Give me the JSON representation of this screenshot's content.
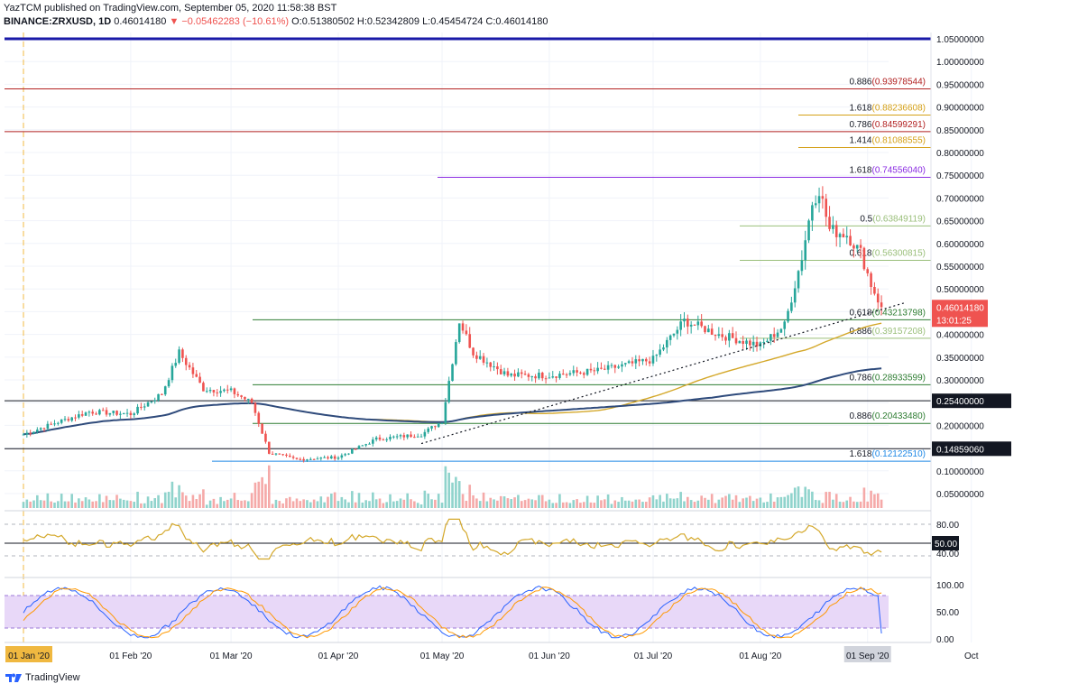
{
  "header": {
    "published_line": "YazTCM published on TradingView.com, September 05, 2020 11:58:38 BST",
    "symbol": "BINANCE:ZRXUSD, 1D",
    "last": "0.46014180",
    "change": "▼ −0.05462283 (−10.61%)",
    "ohlc": "O:0.51380502 H:0.52342809 L:0.45454724 C:0.46014180"
  },
  "brand": {
    "name": "TradingView"
  },
  "chart_data": [
    {
      "type": "candlestick",
      "symbol": "ZRXUSD",
      "exchange": "BINANCE",
      "interval": "1D",
      "ylim": [
        0.03,
        1.06
      ],
      "y_ticks": [
        "1.05000000",
        "1.00000000",
        "0.95000000",
        "0.90000000",
        "0.85000000",
        "0.80000000",
        "0.75000000",
        "0.70000000",
        "0.65000000",
        "0.60000000",
        "0.55000000",
        "0.50000000",
        "0.45000000",
        "0.40000000",
        "0.35000000",
        "0.30000000",
        "0.25000000",
        "0.20000000",
        "0.15000000",
        "0.10000000",
        "0.05000000"
      ],
      "x_ticks": [
        "01 Jan '20",
        "01 Feb '20",
        "01 Mar '20",
        "01 Apr '20",
        "01 May '20",
        "01 Jun '20",
        "01 Jul '20",
        "01 Aug '20",
        "01 Sep '20",
        "Oct"
      ],
      "price_path": [
        [
          "2020-01-01",
          0.18
        ],
        [
          "2020-01-10",
          0.205
        ],
        [
          "2020-01-20",
          0.23
        ],
        [
          "2020-02-01",
          0.225
        ],
        [
          "2020-02-10",
          0.27
        ],
        [
          "2020-02-15",
          0.36
        ],
        [
          "2020-02-22",
          0.28
        ],
        [
          "2020-03-01",
          0.275
        ],
        [
          "2020-03-07",
          0.25
        ],
        [
          "2020-03-12",
          0.14
        ],
        [
          "2020-03-20",
          0.125
        ],
        [
          "2020-04-01",
          0.13
        ],
        [
          "2020-04-12",
          0.17
        ],
        [
          "2020-04-25",
          0.18
        ],
        [
          "2020-05-01",
          0.21
        ],
        [
          "2020-05-06",
          0.43
        ],
        [
          "2020-05-10",
          0.36
        ],
        [
          "2020-05-20",
          0.31
        ],
        [
          "2020-06-01",
          0.31
        ],
        [
          "2020-06-15",
          0.32
        ],
        [
          "2020-07-01",
          0.345
        ],
        [
          "2020-07-10",
          0.43
        ],
        [
          "2020-07-20",
          0.4
        ],
        [
          "2020-08-01",
          0.375
        ],
        [
          "2020-08-08",
          0.42
        ],
        [
          "2020-08-13",
          0.57
        ],
        [
          "2020-08-16",
          0.69
        ],
        [
          "2020-08-18",
          0.72
        ],
        [
          "2020-08-21",
          0.63
        ],
        [
          "2020-08-26",
          0.62
        ],
        [
          "2020-08-30",
          0.58
        ],
        [
          "2020-09-02",
          0.51
        ],
        [
          "2020-09-05",
          0.46
        ]
      ],
      "last_price": "0.46014180",
      "countdown": "13:01:25",
      "moving_averages": [
        {
          "color": "#2f4b7c",
          "end": 0.375
        },
        {
          "color": "#d4a82a",
          "end": 0.45
        }
      ],
      "horizontal_levels": [
        {
          "label": "0.886",
          "value": "(0.93978544)",
          "price": 0.93978544,
          "color": "#b22222"
        },
        {
          "label": "1.618",
          "value": "(0.88236608)",
          "price": 0.88236608,
          "color": "#d4a017"
        },
        {
          "label": "0.786",
          "value": "(0.84599291)",
          "price": 0.84599291,
          "color": "#b22222"
        },
        {
          "label": "1.414",
          "value": "(0.81088555)",
          "price": 0.81088555,
          "color": "#d4a017"
        },
        {
          "label": "1.618",
          "value": "(0.74556040)",
          "price": 0.7455604,
          "color": "#8a2be2"
        },
        {
          "label": "0.5",
          "value": "(0.63849119)",
          "price": 0.63849119,
          "color": "#9abf7a"
        },
        {
          "label": "0.618",
          "value": "(0.56300815)",
          "price": 0.56300815,
          "color": "#9abf7a"
        },
        {
          "label": "0.618",
          "value": "(0.43213798)",
          "price": 0.43213798,
          "color": "#2e7d32"
        },
        {
          "label": "0.886",
          "value": "(0.39157208)",
          "price": 0.39157208,
          "color": "#9abf7a"
        },
        {
          "label": "0.786",
          "value": "(0.28933599)",
          "price": 0.28933599,
          "color": "#2e7d32"
        },
        {
          "label": "0.886",
          "value": "(0.20433480)",
          "price": 0.2043348,
          "color": "#2e7d32"
        },
        {
          "label": "1.618",
          "value": "(0.12122510)",
          "price": 0.1212251,
          "color": "#1e88e5"
        }
      ],
      "marked_levels": [
        {
          "value": "0.25400000",
          "price": 0.254,
          "color": "#131722"
        },
        {
          "value": "0.14859060",
          "price": 0.1485906,
          "color": "#131722"
        }
      ],
      "top_line": {
        "price": 1.05,
        "color": "#1a1aa8"
      },
      "trendline": {
        "from": [
          "2020-04-25",
          0.16
        ],
        "to": [
          "2020-09-12",
          0.47
        ],
        "style": "dotted"
      },
      "volume": "bars at bottom of main pane",
      "grid": true
    },
    {
      "type": "line",
      "indicator": "RSI",
      "y_ticks": [
        "80.00",
        "50.00",
        "40.00"
      ],
      "reference_lines": [
        80,
        50,
        30
      ],
      "marked_value": "50.00",
      "latest": 36
    },
    {
      "type": "line",
      "indicator": "Stochastic RSI",
      "y_ticks": [
        "100.00",
        "50.00",
        "0.00"
      ],
      "band": [
        20,
        80
      ],
      "latest": 10
    }
  ]
}
